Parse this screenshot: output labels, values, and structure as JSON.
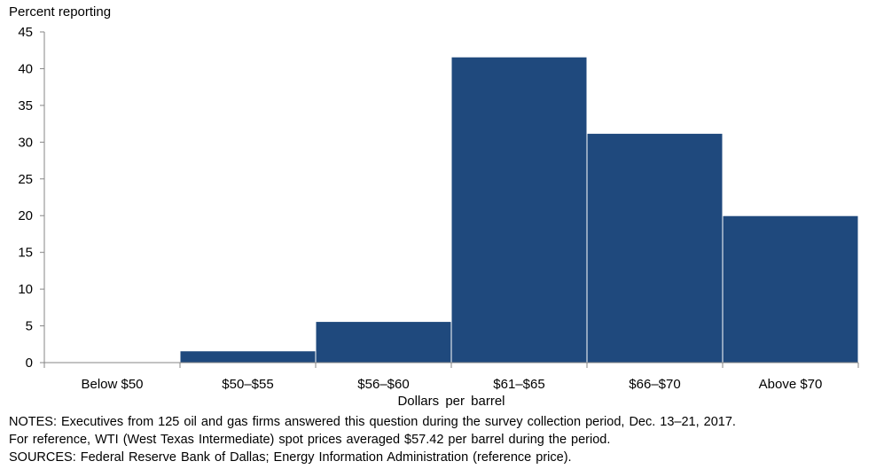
{
  "chart_data": {
    "type": "bar",
    "title": "",
    "ylabel": "Percent reporting",
    "xlabel": "Dollars per barrel",
    "categories": [
      "Below $50",
      "$50–$55",
      "$56–$60",
      "$61–$65",
      "$66–$70",
      "Above $70"
    ],
    "series": [
      {
        "values": [
          0.0,
          1.6,
          5.6,
          41.6,
          31.2,
          20.0
        ]
      }
    ],
    "ylim": [
      0,
      45
    ],
    "yticks": [
      "0",
      "5",
      "10",
      "15",
      "20",
      "25",
      "30",
      "35",
      "40",
      "45"
    ],
    "grid": false,
    "bar_color": "#1f497d"
  },
  "notes": {
    "line1": "NOTES: Executives from 125 oil and gas firms answered this question during the survey collection period, Dec. 13–21, 2017.",
    "line2": "For reference, WTI (West Texas Intermediate) spot prices averaged $57.42 per barrel during the period.",
    "line3": "SOURCES: Federal Reserve Bank of Dallas; Energy Information Administration (reference price)."
  }
}
